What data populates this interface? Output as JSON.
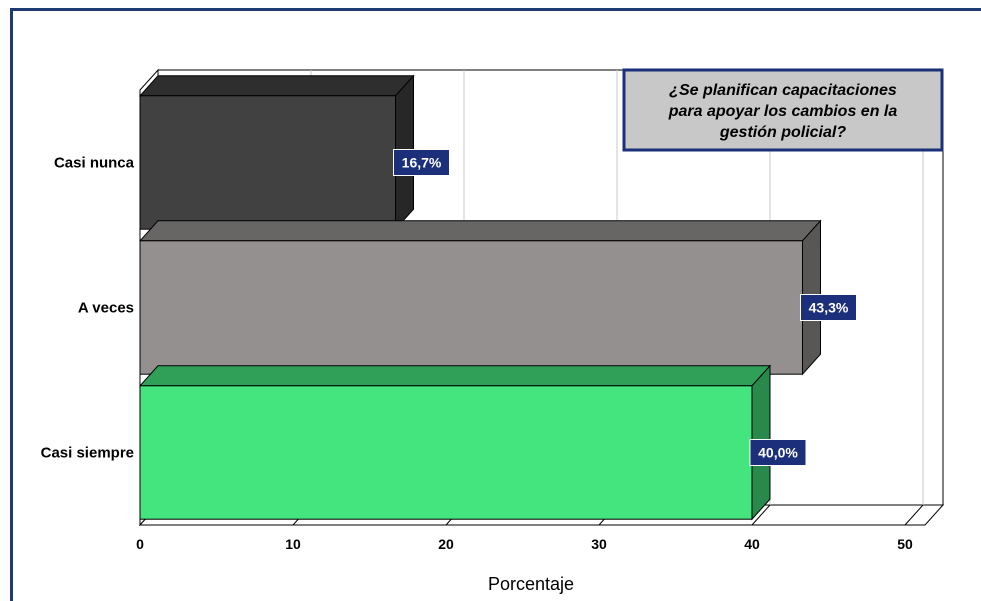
{
  "chart_data": {
    "type": "bar",
    "orientation": "horizontal",
    "title_lines": [
      "¿Se planifican capacitaciones",
      "para apoyar los cambios en la",
      "gestión policial?"
    ],
    "categories": [
      "Casi nunca",
      "A veces",
      "Casi siempre"
    ],
    "values": [
      16.7,
      43.3,
      40.0
    ],
    "value_labels": [
      "16,7%",
      "43,3%",
      "40,0%"
    ],
    "colors": [
      "#414141",
      "#949090",
      "#44e57e"
    ],
    "xlabel": "Porcentaje",
    "ylabel": "",
    "xlim": [
      0,
      50
    ],
    "xticks": [
      "0",
      "10",
      "20",
      "30",
      "40",
      "50"
    ],
    "grid": true,
    "label_box_color": "#1b2f7a",
    "title_box_color": "#c8c8c8"
  }
}
